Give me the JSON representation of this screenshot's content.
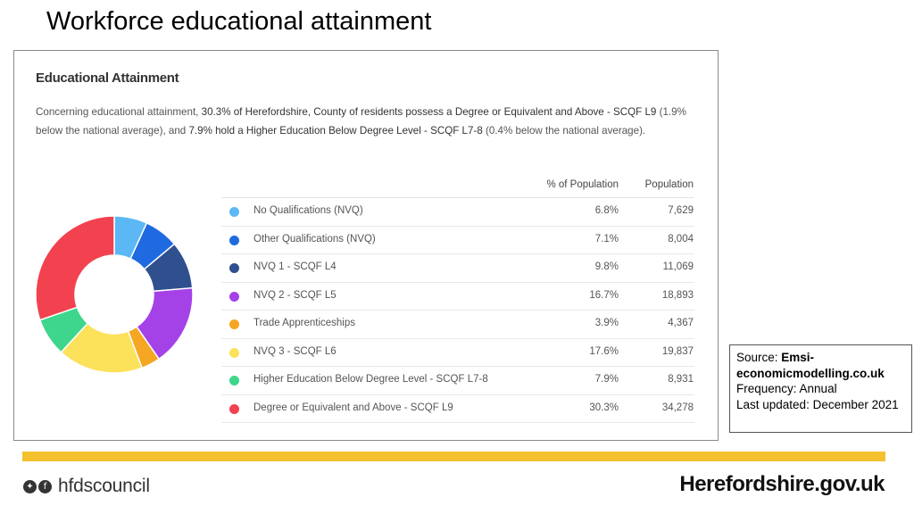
{
  "slide": {
    "title": "Workforce educational attainment"
  },
  "panel": {
    "title": "Educational Attainment",
    "desc_1": "Concerning educational attainment, ",
    "desc_2": "30.3% of Herefordshire, County of residents possess a Degree or Equivalent and Above - SCQF L9",
    "desc_3": " (1.9% below the national average), and ",
    "desc_4": "7.9% hold a Higher Education Below Degree Level - SCQF L7-8",
    "desc_5": " (0.4% below the national average)."
  },
  "table": {
    "header_pct": "% of Population",
    "header_pop": "Population",
    "rows": [
      {
        "label": "No Qualifications (NVQ)",
        "pct": "6.8%",
        "pop": "7,629"
      },
      {
        "label": "Other Qualifications (NVQ)",
        "pct": "7.1%",
        "pop": "8,004"
      },
      {
        "label": "NVQ 1 - SCQF L4",
        "pct": "9.8%",
        "pop": "11,069"
      },
      {
        "label": "NVQ 2 - SCQF L5",
        "pct": "16.7%",
        "pop": "18,893"
      },
      {
        "label": "Trade Apprenticeships",
        "pct": "3.9%",
        "pop": "4,367"
      },
      {
        "label": "NVQ 3 - SCQF L6",
        "pct": "17.6%",
        "pop": "19,837"
      },
      {
        "label": "Higher Education Below Degree Level - SCQF L7-8",
        "pct": "7.9%",
        "pop": "8,931"
      },
      {
        "label": "Degree or Equivalent and Above - SCQF L9",
        "pct": "30.3%",
        "pop": "34,278"
      }
    ]
  },
  "chart_data": {
    "type": "pie",
    "variant": "donut",
    "categories": [
      "No Qualifications (NVQ)",
      "Other Qualifications (NVQ)",
      "NVQ 1 - SCQF L4",
      "NVQ 2 - SCQF L5",
      "Trade Apprenticeships",
      "NVQ 3 - SCQF L6",
      "Higher Education Below Degree Level - SCQF L7-8",
      "Degree or Equivalent and Above - SCQF L9"
    ],
    "values": [
      6.8,
      7.1,
      9.8,
      16.7,
      3.9,
      17.6,
      7.9,
      30.3
    ],
    "populations": [
      7629,
      8004,
      11069,
      18893,
      4367,
      19837,
      8931,
      34278
    ],
    "colors": [
      "#5bb8f5",
      "#1f6ae0",
      "#2f4f8f",
      "#a442e8",
      "#f5a623",
      "#fce15a",
      "#3dd68c",
      "#f2424f"
    ]
  },
  "source": {
    "label": "Source: ",
    "name": "Emsi-economicmodelling.co.uk",
    "frequency": "Frequency:  Annual",
    "updated": "Last updated:  December 2021"
  },
  "footer": {
    "handle": "hfdscouncil",
    "site": "Herefordshire.gov.uk",
    "twitter_icon": "twitter-icon",
    "facebook_icon": "facebook-icon",
    "accent": "#f4c02e"
  }
}
